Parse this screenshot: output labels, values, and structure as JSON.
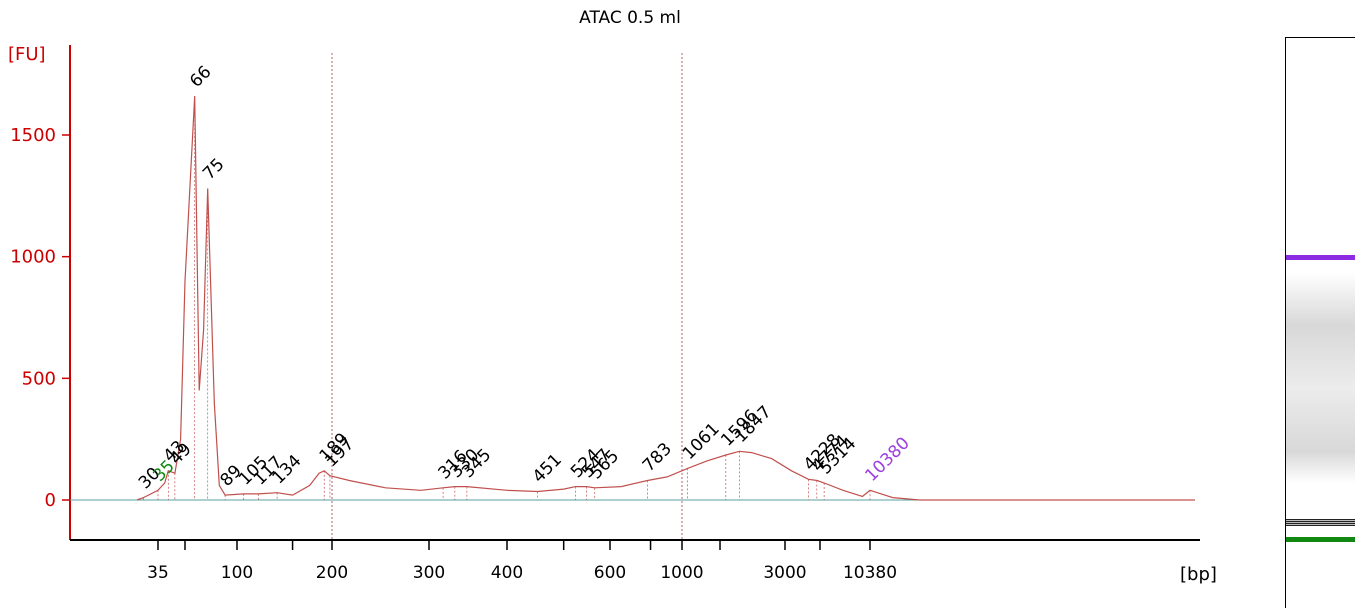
{
  "chart_data": {
    "type": "line",
    "title": "ATAC 0.5 ml",
    "ylabel": "[FU]",
    "xlabel": "[bp]",
    "ylim": [
      -160,
      1800
    ],
    "yticks": [
      0,
      500,
      1000,
      1500
    ],
    "xtick_labels": [
      {
        "label": "35",
        "bp": 35
      },
      {
        "label": "100",
        "bp": 100
      },
      {
        "label": "200",
        "bp": 200
      },
      {
        "label": "300",
        "bp": 300
      },
      {
        "label": "400",
        "bp": 400
      },
      {
        "label": "600",
        "bp": 600
      },
      {
        "label": "1000",
        "bp": 1000
      },
      {
        "label": "3000",
        "bp": 3000
      },
      {
        "label": "10380",
        "bp": 10380
      }
    ],
    "reference_lines_bp": [
      200,
      1000
    ],
    "markers": {
      "lower": 35,
      "upper": 10380,
      "lower_color": "#118811",
      "upper_color": "#9b3fe0"
    },
    "line_color": "#c0504d",
    "trace": [
      {
        "bp": 28,
        "fu": 0
      },
      {
        "bp": 30,
        "fu": 10
      },
      {
        "bp": 35,
        "fu": 40
      },
      {
        "bp": 40,
        "fu": 70
      },
      {
        "bp": 43,
        "fu": 120
      },
      {
        "bp": 49,
        "fu": 110
      },
      {
        "bp": 55,
        "fu": 250
      },
      {
        "bp": 60,
        "fu": 900
      },
      {
        "bp": 66,
        "fu": 1660
      },
      {
        "bp": 69,
        "fu": 450
      },
      {
        "bp": 72,
        "fu": 700
      },
      {
        "bp": 75,
        "fu": 1280
      },
      {
        "bp": 80,
        "fu": 400
      },
      {
        "bp": 84,
        "fu": 60
      },
      {
        "bp": 89,
        "fu": 20
      },
      {
        "bp": 105,
        "fu": 25
      },
      {
        "bp": 117,
        "fu": 25
      },
      {
        "bp": 134,
        "fu": 30
      },
      {
        "bp": 150,
        "fu": 20
      },
      {
        "bp": 170,
        "fu": 60
      },
      {
        "bp": 182,
        "fu": 110
      },
      {
        "bp": 189,
        "fu": 120
      },
      {
        "bp": 197,
        "fu": 100
      },
      {
        "bp": 215,
        "fu": 80
      },
      {
        "bp": 250,
        "fu": 50
      },
      {
        "bp": 290,
        "fu": 40
      },
      {
        "bp": 316,
        "fu": 50
      },
      {
        "bp": 330,
        "fu": 55
      },
      {
        "bp": 345,
        "fu": 55
      },
      {
        "bp": 400,
        "fu": 40
      },
      {
        "bp": 451,
        "fu": 35
      },
      {
        "bp": 500,
        "fu": 45
      },
      {
        "bp": 524,
        "fu": 55
      },
      {
        "bp": 547,
        "fu": 55
      },
      {
        "bp": 565,
        "fu": 50
      },
      {
        "bp": 650,
        "fu": 55
      },
      {
        "bp": 783,
        "fu": 80
      },
      {
        "bp": 900,
        "fu": 95
      },
      {
        "bp": 1061,
        "fu": 130
      },
      {
        "bp": 1300,
        "fu": 160
      },
      {
        "bp": 1596,
        "fu": 185
      },
      {
        "bp": 1847,
        "fu": 200
      },
      {
        "bp": 2100,
        "fu": 195
      },
      {
        "bp": 2600,
        "fu": 170
      },
      {
        "bp": 3300,
        "fu": 120
      },
      {
        "bp": 4228,
        "fu": 85
      },
      {
        "bp": 4800,
        "fu": 80
      },
      {
        "bp": 5314,
        "fu": 70
      },
      {
        "bp": 7000,
        "fu": 40
      },
      {
        "bp": 9300,
        "fu": 15
      },
      {
        "bp": 10380,
        "fu": 40
      },
      {
        "bp": 11500,
        "fu": 10
      },
      {
        "bp": 13000,
        "fu": 0
      },
      {
        "bp": 45000,
        "fu": 0
      }
    ],
    "peak_labels": [
      {
        "label": "30",
        "bp": 30,
        "fu": 10,
        "color": "#000000"
      },
      {
        "label": "35",
        "bp": 35,
        "fu": 40,
        "color": "#118811"
      },
      {
        "label": "43",
        "bp": 43,
        "fu": 120,
        "color": "#000000"
      },
      {
        "label": "49",
        "bp": 49,
        "fu": 110,
        "color": "#000000"
      },
      {
        "label": "66",
        "bp": 66,
        "fu": 1660,
        "color": "#000000"
      },
      {
        "label": "75",
        "bp": 75,
        "fu": 1280,
        "color": "#000000"
      },
      {
        "label": "89",
        "bp": 89,
        "fu": 20,
        "color": "#000000"
      },
      {
        "label": "105",
        "bp": 105,
        "fu": 25,
        "color": "#000000"
      },
      {
        "label": "117",
        "bp": 117,
        "fu": 25,
        "color": "#000000"
      },
      {
        "label": "134",
        "bp": 134,
        "fu": 30,
        "color": "#000000"
      },
      {
        "label": "189",
        "bp": 189,
        "fu": 120,
        "color": "#000000"
      },
      {
        "label": "197",
        "bp": 197,
        "fu": 100,
        "color": "#000000"
      },
      {
        "label": "316",
        "bp": 316,
        "fu": 50,
        "color": "#000000"
      },
      {
        "label": "330",
        "bp": 330,
        "fu": 55,
        "color": "#000000"
      },
      {
        "label": "345",
        "bp": 345,
        "fu": 55,
        "color": "#000000"
      },
      {
        "label": "451",
        "bp": 451,
        "fu": 35,
        "color": "#000000"
      },
      {
        "label": "524",
        "bp": 524,
        "fu": 55,
        "color": "#000000"
      },
      {
        "label": "547",
        "bp": 547,
        "fu": 55,
        "color": "#000000"
      },
      {
        "label": "565",
        "bp": 565,
        "fu": 50,
        "color": "#000000"
      },
      {
        "label": "783",
        "bp": 783,
        "fu": 80,
        "color": "#000000"
      },
      {
        "label": "1061",
        "bp": 1061,
        "fu": 130,
        "color": "#000000"
      },
      {
        "label": "1596",
        "bp": 1596,
        "fu": 185,
        "color": "#000000"
      },
      {
        "label": "1847",
        "bp": 1847,
        "fu": 200,
        "color": "#000000"
      },
      {
        "label": "4228",
        "bp": 4228,
        "fu": 85,
        "color": "#000000"
      },
      {
        "label": "4774",
        "bp": 4774,
        "fu": 80,
        "color": "#000000"
      },
      {
        "label": "5314",
        "bp": 5314,
        "fu": 70,
        "color": "#000000"
      },
      {
        "label": "10380",
        "bp": 10380,
        "fu": 40,
        "color": "#9b3fe0"
      }
    ]
  },
  "gel": {
    "bands": [
      {
        "name": "upper-marker-band",
        "color": "#8b2be2"
      },
      {
        "name": "smear-band",
        "color": "#d8d8d8"
      },
      {
        "name": "lower-dark-band",
        "color": "#222222"
      },
      {
        "name": "lower-marker-band",
        "color": "#118811"
      }
    ]
  }
}
